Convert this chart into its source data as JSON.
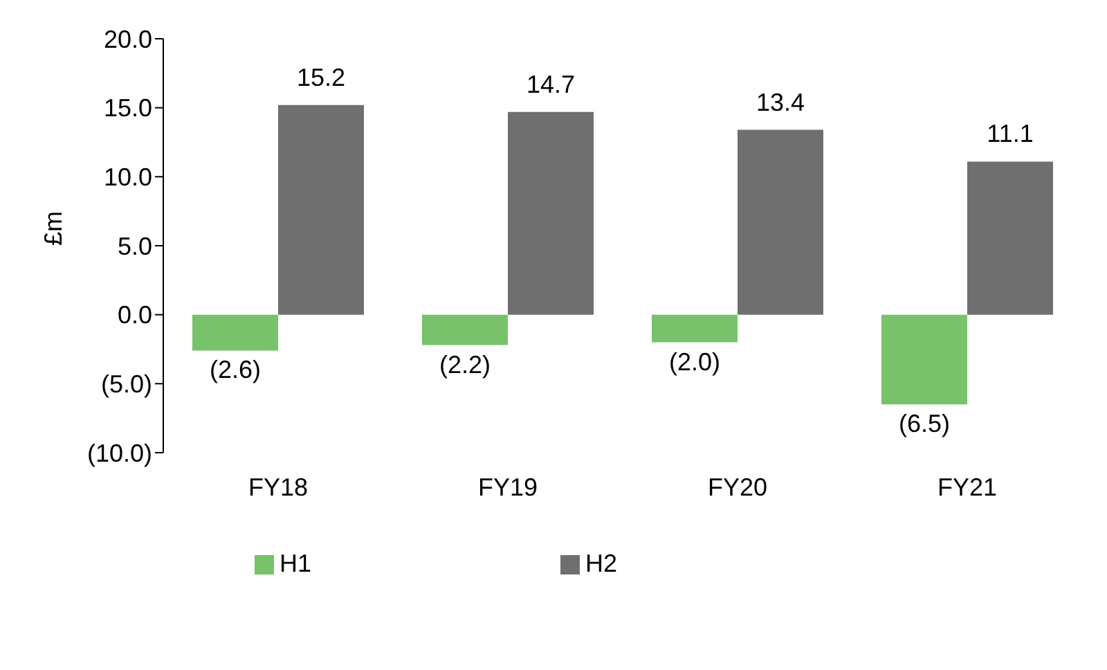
{
  "chart_data": {
    "type": "bar",
    "ylabel": "£m",
    "categories": [
      "FY18",
      "FY19",
      "FY20",
      "FY21"
    ],
    "series": [
      {
        "name": "H1",
        "color": "#77c26a",
        "values": [
          -2.6,
          -2.2,
          -2.0,
          -6.5
        ],
        "value_labels": [
          "(2.6)",
          "(2.2)",
          "(2.0)",
          "(6.5)"
        ]
      },
      {
        "name": "H2",
        "color": "#6f6f6f",
        "values": [
          15.2,
          14.7,
          13.4,
          11.1
        ],
        "value_labels": [
          "15.2",
          "14.7",
          "13.4",
          "11.1"
        ]
      }
    ],
    "ylim": [
      -10,
      20
    ],
    "yticks": [
      {
        "value": -10,
        "label": "(10.0)"
      },
      {
        "value": -5,
        "label": "(5.0)"
      },
      {
        "value": 0,
        "label": "0.0"
      },
      {
        "value": 5,
        "label": "5.0"
      },
      {
        "value": 10,
        "label": "10.0"
      },
      {
        "value": 15,
        "label": "15.0"
      },
      {
        "value": 20,
        "label": "20.0"
      }
    ],
    "grid": false,
    "legend": "bottom"
  }
}
